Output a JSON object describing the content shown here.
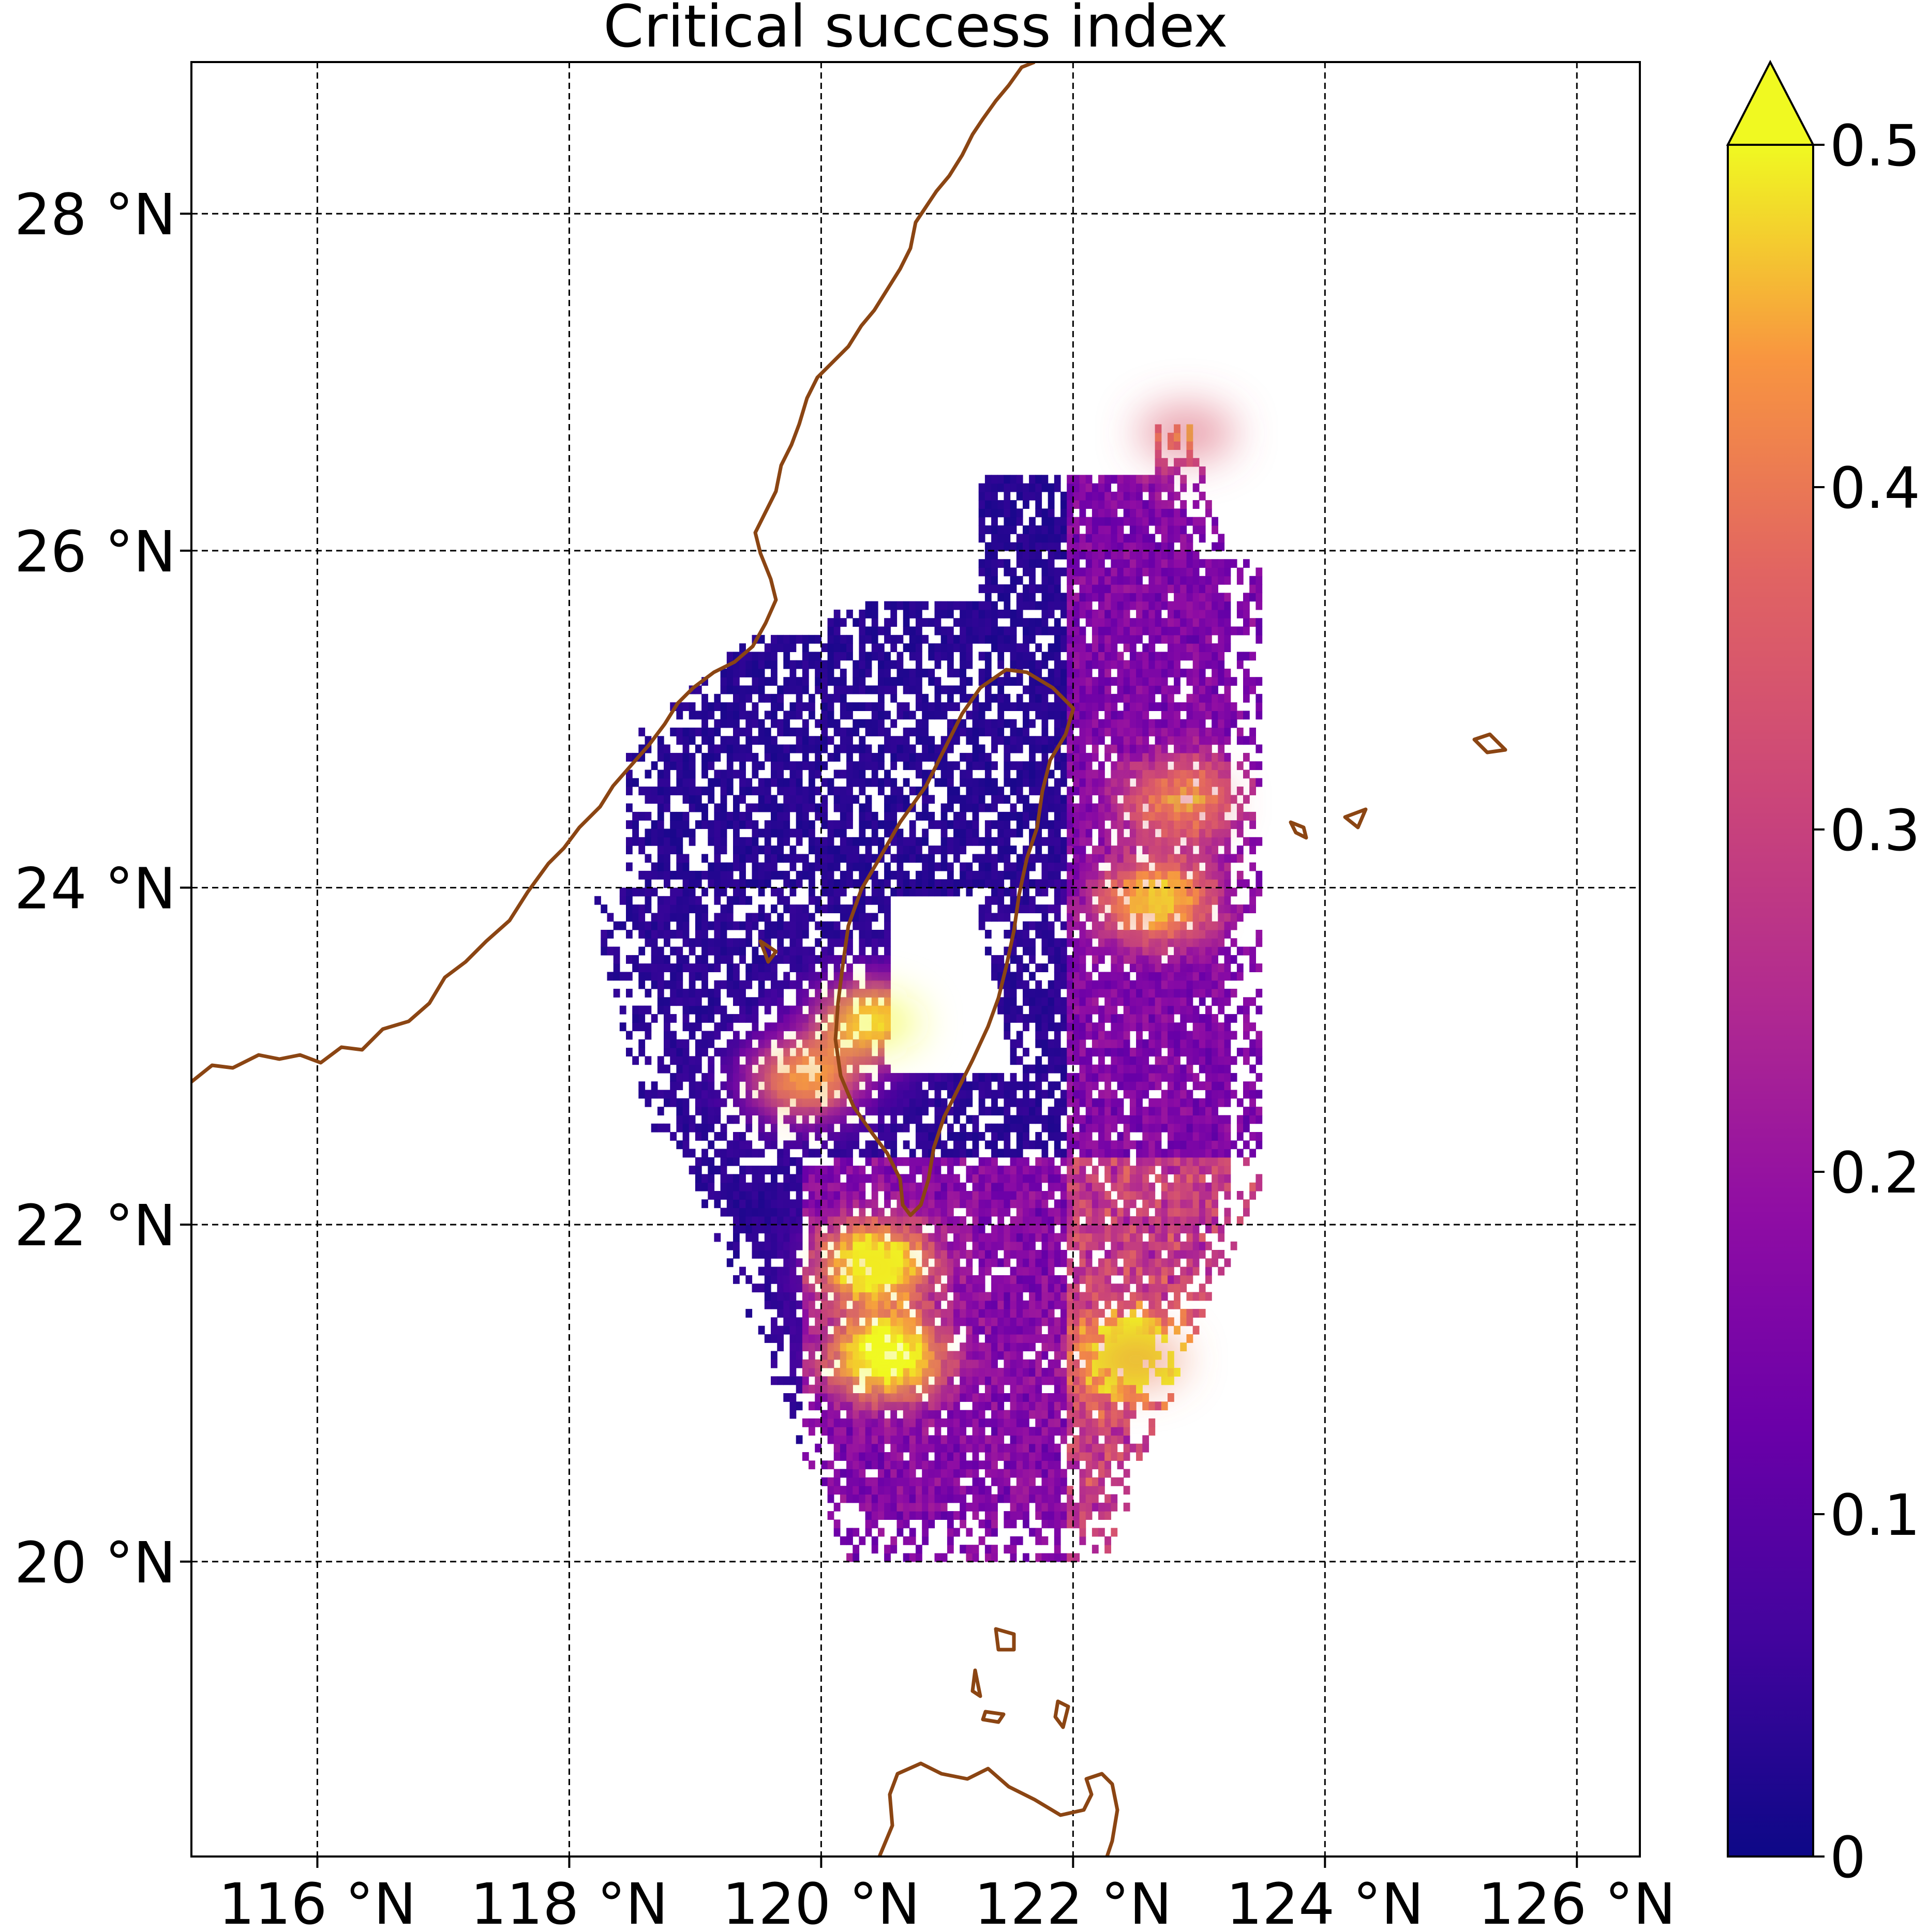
{
  "title": "Critical success index",
  "map": {
    "lon_range": [
      115,
      126.5
    ],
    "lat_range": [
      18.25,
      28.9
    ],
    "xticks": [
      {
        "value": 116,
        "label": "116 °N"
      },
      {
        "value": 118,
        "label": "118 °N"
      },
      {
        "value": 120,
        "label": "120 °N"
      },
      {
        "value": 122,
        "label": "122 °N"
      },
      {
        "value": 124,
        "label": "124 °N"
      },
      {
        "value": 126,
        "label": "126 °N"
      }
    ],
    "yticks": [
      {
        "value": 20,
        "label": "20 °N"
      },
      {
        "value": 22,
        "label": "22 °N"
      },
      {
        "value": 24,
        "label": "24 °N"
      },
      {
        "value": 26,
        "label": "26 °N"
      },
      {
        "value": 28,
        "label": "28 °N"
      }
    ],
    "grid": true,
    "grid_style": "dashed",
    "coastline_color": "#8B4513",
    "field_extent": {
      "lon": [
        118.0,
        123.5
      ],
      "lat": [
        20.0,
        26.8
      ]
    },
    "hotspots": [
      {
        "lon": 120.5,
        "lat": 21.2,
        "value": 0.5
      },
      {
        "lon": 120.4,
        "lat": 21.75,
        "value": 0.48
      },
      {
        "lon": 120.4,
        "lat": 23.2,
        "value": 0.5
      },
      {
        "lon": 119.85,
        "lat": 22.85,
        "value": 0.45
      },
      {
        "lon": 122.65,
        "lat": 23.9,
        "value": 0.42
      },
      {
        "lon": 122.85,
        "lat": 24.5,
        "value": 0.36
      },
      {
        "lon": 122.5,
        "lat": 21.2,
        "value": 0.4
      },
      {
        "lon": 122.9,
        "lat": 26.7,
        "value": 0.35
      }
    ]
  },
  "colorbar": {
    "colormap": "plasma",
    "vmin": 0,
    "vmax": 0.5,
    "extend": "max",
    "ticks": [
      {
        "value": 0,
        "label": "0"
      },
      {
        "value": 0.1,
        "label": "0.1"
      },
      {
        "value": 0.2,
        "label": "0.2"
      },
      {
        "value": 0.3,
        "label": "0.3"
      },
      {
        "value": 0.4,
        "label": "0.4"
      },
      {
        "value": 0.5,
        "label": "0.5"
      }
    ]
  }
}
